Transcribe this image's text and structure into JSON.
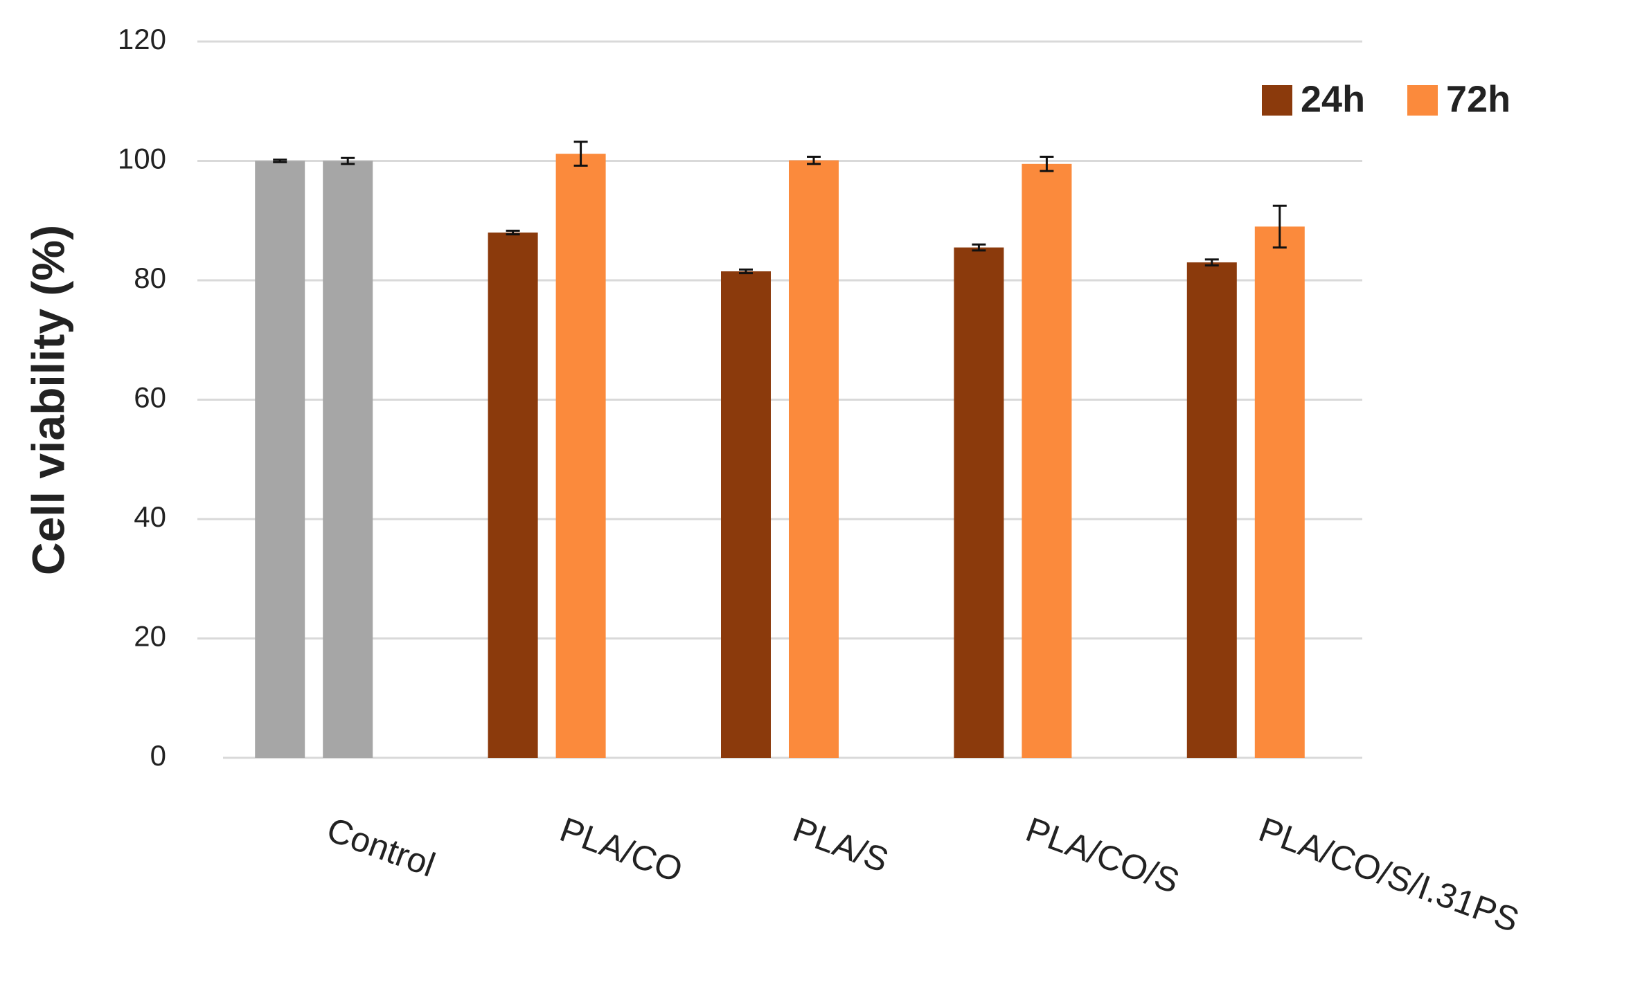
{
  "chart_data": {
    "type": "bar",
    "y_label": "Cell viability (%)",
    "categories": [
      "Control",
      "PLA/CO",
      "PLA/S",
      "PLA/CO/S",
      "PLA/CO/S/I.31PS"
    ],
    "series": [
      {
        "name": "24h",
        "color": "#8b3a0c",
        "colors": [
          "#a6a6a6",
          "#8b3a0c",
          "#8b3a0c",
          "#8b3a0c",
          "#8b3a0c"
        ],
        "values": [
          100,
          88,
          81.5,
          85.5,
          83
        ],
        "errors": [
          0.2,
          0.3,
          0.3,
          0.5,
          0.5
        ]
      },
      {
        "name": "72h",
        "color": "#fb8a3c",
        "colors": [
          "#a6a6a6",
          "#fb8a3c",
          "#fb8a3c",
          "#fb8a3c",
          "#fb8a3c"
        ],
        "values": [
          100,
          101.2,
          100.1,
          99.5,
          89
        ],
        "errors": [
          0.5,
          2,
          0.6,
          1.2,
          3.5
        ]
      }
    ],
    "ylim": [
      0,
      120
    ],
    "yticks": [
      0,
      20,
      40,
      60,
      80,
      100,
      120
    ],
    "grid": true,
    "legend": "top-right"
  }
}
